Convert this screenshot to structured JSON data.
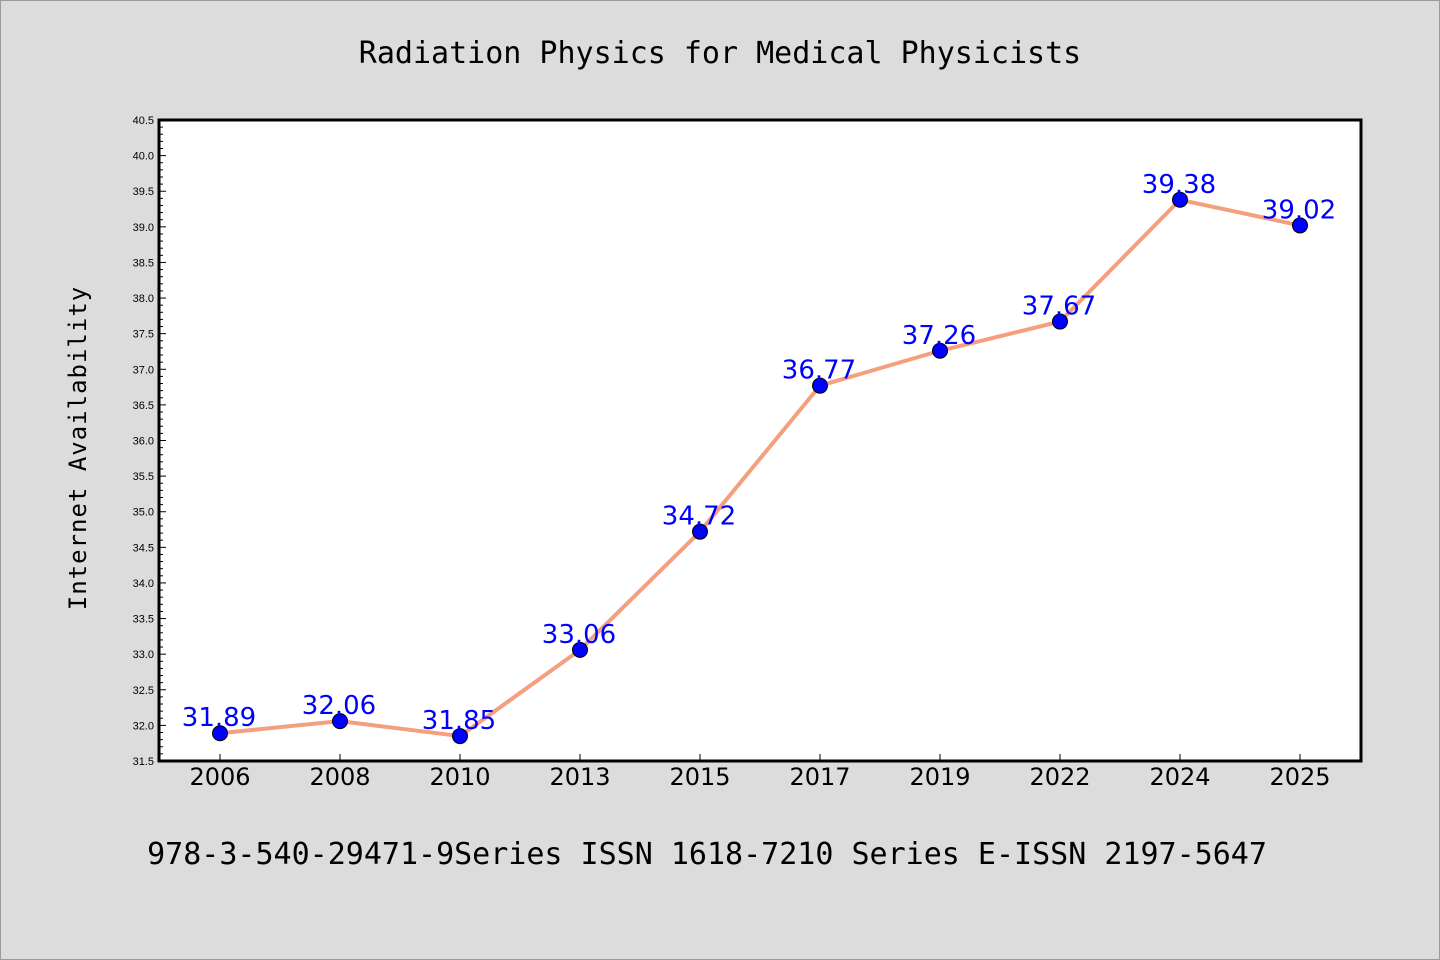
{
  "chart_data": {
    "type": "line",
    "title": "Radiation Physics for Medical Physicists",
    "ylabel": "Internet Availability",
    "xlabel": "",
    "caption": "978-3-540-29471-9Series ISSN 1618-7210 Series E-ISSN 2197-5647",
    "categories": [
      "2006",
      "2008",
      "2010",
      "2013",
      "2015",
      "2017",
      "2019",
      "2022",
      "2024",
      "2025"
    ],
    "series": [
      {
        "values": [
          31.89,
          32.06,
          31.85,
          33.06,
          34.72,
          36.77,
          37.26,
          37.67,
          39.38,
          39.02
        ],
        "labels": [
          "31.89",
          "32.06",
          "31.85",
          "33.06",
          "34.72",
          "36.77",
          "37.26",
          "37.67",
          "39.38",
          "39.02"
        ]
      }
    ],
    "ylim": [
      31.5,
      40.5
    ],
    "yticks": [
      "31.5",
      "32.0",
      "32.5",
      "33.0",
      "33.5",
      "34.0",
      "34.5",
      "35.0",
      "35.5",
      "36.0",
      "36.5",
      "37.0",
      "37.5",
      "38.0",
      "38.5",
      "39.0",
      "39.5",
      "40.0",
      "40.5"
    ],
    "grid": false,
    "colors": {
      "line": "#f4a07e",
      "marker": "#0000ff",
      "marker_edge": "#000000",
      "label": "#0000ff",
      "background": "#dcdcdc",
      "plot_background": "#ffffff"
    }
  }
}
